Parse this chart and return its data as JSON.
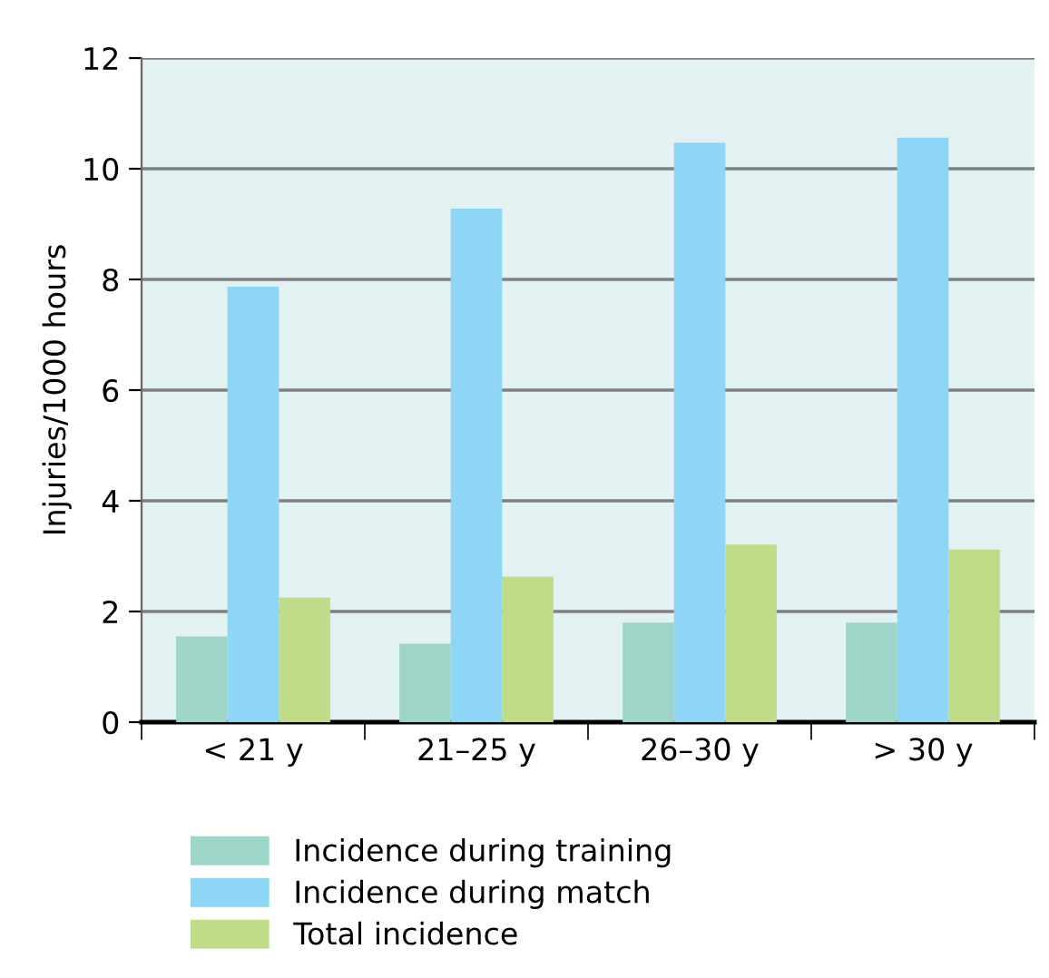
{
  "chart_data": {
    "type": "bar",
    "ylabel": "Injuries/1000 hours",
    "categories": [
      "< 21 y",
      "21–25 y",
      "26–30 y",
      "> 30 y"
    ],
    "series": [
      {
        "name": "Incidence during training",
        "color": "#9dd6c8",
        "values": [
          1.55,
          1.42,
          1.8,
          1.8
        ]
      },
      {
        "name": "Incidence during match",
        "color": "#8dd6f5",
        "values": [
          7.87,
          9.28,
          10.47,
          10.56
        ]
      },
      {
        "name": "Total incidence",
        "color": "#c1dc88",
        "values": [
          2.25,
          2.63,
          3.21,
          3.12
        ]
      }
    ],
    "ylim": [
      0,
      12
    ],
    "yticks": [
      0,
      2,
      4,
      6,
      8,
      10,
      12
    ],
    "grid": "y",
    "legend": "bottom"
  }
}
